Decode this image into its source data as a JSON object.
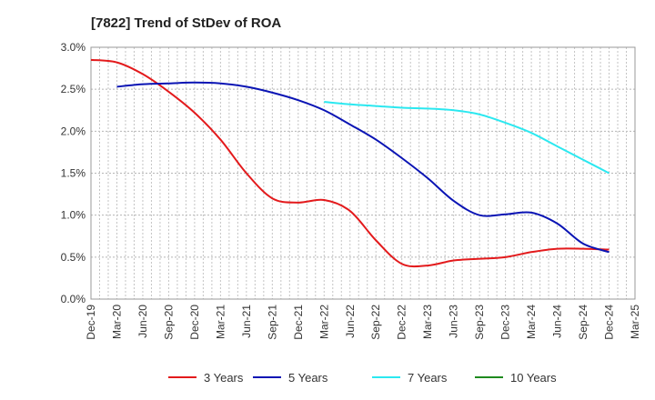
{
  "chart_data": {
    "type": "line",
    "title": "[7822]  Trend of StDev of ROA",
    "xlabel": "",
    "ylabel": "",
    "x_ticks": [
      "Dec-19",
      "Mar-20",
      "Jun-20",
      "Sep-20",
      "Dec-20",
      "Mar-21",
      "Jun-21",
      "Sep-21",
      "Dec-21",
      "Mar-22",
      "Jun-22",
      "Sep-22",
      "Dec-22",
      "Mar-23",
      "Jun-23",
      "Sep-23",
      "Dec-23",
      "Mar-24",
      "Jun-24",
      "Sep-24",
      "Dec-24",
      "Mar-25"
    ],
    "y_ticks": [
      "0.0%",
      "0.5%",
      "1.0%",
      "1.5%",
      "2.0%",
      "2.5%",
      "3.0%"
    ],
    "ylim": [
      0,
      3.0
    ],
    "grid": true,
    "legend_position": "bottom",
    "series": [
      {
        "name": "3 Years",
        "color": "#e31a1c",
        "values": [
          2.85,
          2.82,
          2.68,
          2.47,
          2.22,
          1.9,
          1.5,
          1.2,
          1.15,
          1.18,
          1.05,
          0.7,
          0.42,
          0.4,
          0.46,
          0.48,
          0.5,
          0.56,
          0.6,
          0.6,
          0.59,
          null
        ]
      },
      {
        "name": "5 Years",
        "color": "#0a14b4",
        "values": [
          null,
          2.53,
          2.56,
          2.57,
          2.58,
          2.57,
          2.53,
          2.46,
          2.37,
          2.25,
          2.08,
          1.9,
          1.68,
          1.44,
          1.17,
          1.0,
          1.01,
          1.03,
          0.9,
          0.66,
          0.56,
          null
        ]
      },
      {
        "name": "7 Years",
        "color": "#2be8f0",
        "values": [
          null,
          null,
          null,
          null,
          null,
          null,
          null,
          null,
          null,
          2.35,
          2.32,
          2.3,
          2.28,
          2.27,
          2.25,
          2.2,
          2.1,
          1.98,
          1.82,
          1.66,
          1.5,
          null
        ]
      },
      {
        "name": "10 Years",
        "color": "#1e8a1e",
        "values": [
          null,
          null,
          null,
          null,
          null,
          null,
          null,
          null,
          null,
          null,
          null,
          null,
          null,
          null,
          null,
          null,
          null,
          null,
          null,
          null,
          null,
          null
        ]
      }
    ]
  }
}
